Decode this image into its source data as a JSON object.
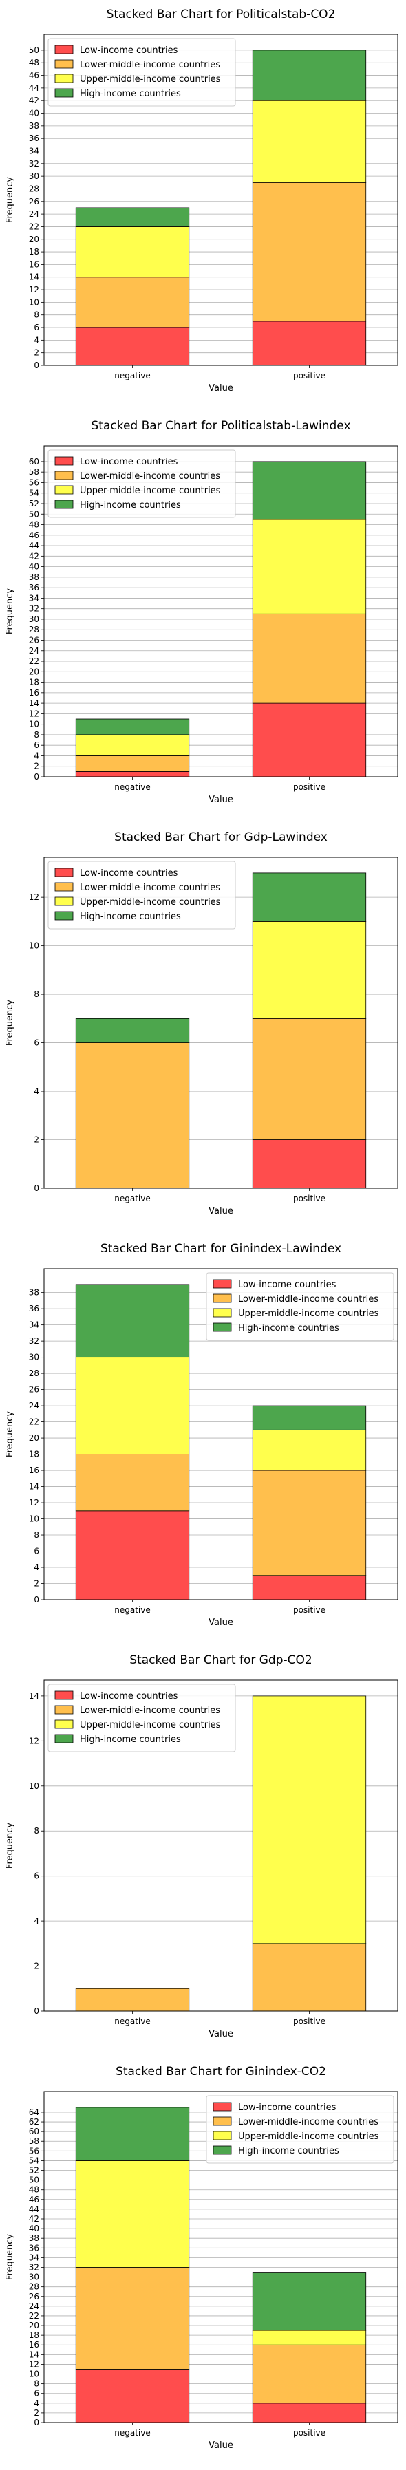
{
  "legend_labels": [
    "Low-income countries",
    "Lower-middle-income countries",
    "Upper-middle-income countries",
    "High-income countries"
  ],
  "colors": [
    "#ff4d4d",
    "#ffbf4d",
    "#ffff4d",
    "#4da64d"
  ],
  "chart_data": [
    {
      "type": "bar",
      "stacked": true,
      "title": "Stacked Bar Chart for Politicalstab-CO2",
      "xlabel": "Value",
      "ylabel": "Frequency",
      "categories": [
        "negative",
        "positive"
      ],
      "series": [
        {
          "name": "Low-income countries",
          "values": [
            6,
            7
          ]
        },
        {
          "name": "Lower-middle-income countries",
          "values": [
            8,
            22
          ]
        },
        {
          "name": "Upper-middle-income countries",
          "values": [
            8,
            13
          ]
        },
        {
          "name": "High-income countries",
          "values": [
            3,
            8
          ]
        }
      ],
      "ylim": [
        0,
        52.5
      ],
      "yticks": [
        0,
        2,
        4,
        6,
        8,
        10,
        12,
        14,
        16,
        18,
        20,
        22,
        24,
        26,
        28,
        30,
        32,
        34,
        36,
        38,
        40,
        42,
        44,
        46,
        48,
        50
      ],
      "grid": true,
      "legend": "top-left"
    },
    {
      "type": "bar",
      "stacked": true,
      "title": "Stacked Bar Chart for Politicalstab-Lawindex",
      "xlabel": "Value",
      "ylabel": "Frequency",
      "categories": [
        "negative",
        "positive"
      ],
      "series": [
        {
          "name": "Low-income countries",
          "values": [
            1,
            14
          ]
        },
        {
          "name": "Lower-middle-income countries",
          "values": [
            3,
            17
          ]
        },
        {
          "name": "Upper-middle-income countries",
          "values": [
            4,
            18
          ]
        },
        {
          "name": "High-income countries",
          "values": [
            3,
            11
          ]
        }
      ],
      "ylim": [
        0,
        63
      ],
      "yticks": [
        0,
        2,
        4,
        6,
        8,
        10,
        12,
        14,
        16,
        18,
        20,
        22,
        24,
        26,
        28,
        30,
        32,
        34,
        36,
        38,
        40,
        42,
        44,
        46,
        48,
        50,
        52,
        54,
        56,
        58,
        60
      ],
      "grid": true,
      "legend": "top-left"
    },
    {
      "type": "bar",
      "stacked": true,
      "title": "Stacked Bar Chart for Gdp-Lawindex",
      "xlabel": "Value",
      "ylabel": "Frequency",
      "categories": [
        "negative",
        "positive"
      ],
      "series": [
        {
          "name": "Low-income countries",
          "values": [
            0,
            2
          ]
        },
        {
          "name": "Lower-middle-income countries",
          "values": [
            6,
            5
          ]
        },
        {
          "name": "Upper-middle-income countries",
          "values": [
            0,
            4
          ]
        },
        {
          "name": "High-income countries",
          "values": [
            1,
            2
          ]
        }
      ],
      "ylim": [
        0,
        13.65
      ],
      "yticks": [
        0,
        2,
        4,
        6,
        8,
        10,
        12
      ],
      "grid": true,
      "legend": "top-left"
    },
    {
      "type": "bar",
      "stacked": true,
      "title": "Stacked Bar Chart for Ginindex-Lawindex",
      "xlabel": "Value",
      "ylabel": "Frequency",
      "categories": [
        "negative",
        "positive"
      ],
      "series": [
        {
          "name": "Low-income countries",
          "values": [
            11,
            3
          ]
        },
        {
          "name": "Lower-middle-income countries",
          "values": [
            7,
            13
          ]
        },
        {
          "name": "Upper-middle-income countries",
          "values": [
            12,
            5
          ]
        },
        {
          "name": "High-income countries",
          "values": [
            9,
            3
          ]
        }
      ],
      "ylim": [
        0,
        40.95
      ],
      "yticks": [
        0,
        2,
        4,
        6,
        8,
        10,
        12,
        14,
        16,
        18,
        20,
        22,
        24,
        26,
        28,
        30,
        32,
        34,
        36,
        38
      ],
      "grid": true,
      "legend": "top-right"
    },
    {
      "type": "bar",
      "stacked": true,
      "title": "Stacked Bar Chart for Gdp-CO2",
      "xlabel": "Value",
      "ylabel": "Frequency",
      "categories": [
        "negative",
        "positive"
      ],
      "series": [
        {
          "name": "Low-income countries",
          "values": [
            0,
            0
          ]
        },
        {
          "name": "Lower-middle-income countries",
          "values": [
            1,
            3
          ]
        },
        {
          "name": "Upper-middle-income countries",
          "values": [
            0,
            11
          ]
        },
        {
          "name": "High-income countries",
          "values": [
            0,
            0
          ]
        }
      ],
      "ylim": [
        0,
        14.7
      ],
      "yticks": [
        0,
        2,
        4,
        6,
        8,
        10,
        12,
        14
      ],
      "grid": true,
      "legend": "top-left"
    },
    {
      "type": "bar",
      "stacked": true,
      "title": "Stacked Bar Chart for Ginindex-CO2",
      "xlabel": "Value",
      "ylabel": "Frequency",
      "categories": [
        "negative",
        "positive"
      ],
      "series": [
        {
          "name": "Low-income countries",
          "values": [
            11,
            4
          ]
        },
        {
          "name": "Lower-middle-income countries",
          "values": [
            21,
            12
          ]
        },
        {
          "name": "Upper-middle-income countries",
          "values": [
            22,
            3
          ]
        },
        {
          "name": "High-income countries",
          "values": [
            11,
            12
          ]
        }
      ],
      "ylim": [
        0,
        68.25
      ],
      "yticks": [
        0,
        2,
        4,
        6,
        8,
        10,
        12,
        14,
        16,
        18,
        20,
        22,
        24,
        26,
        28,
        30,
        32,
        34,
        36,
        38,
        40,
        42,
        44,
        46,
        48,
        50,
        52,
        54,
        56,
        58,
        60,
        62,
        64
      ],
      "grid": true,
      "legend": "top-right"
    }
  ]
}
